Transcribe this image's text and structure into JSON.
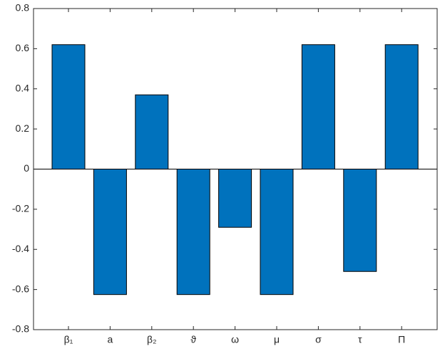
{
  "chart_data": {
    "type": "bar",
    "categories": [
      "β₁",
      "a",
      "β₂",
      "ϑ",
      "ω",
      "μ",
      "σ",
      "τ",
      "Π"
    ],
    "values": [
      0.62,
      -0.625,
      0.37,
      -0.625,
      -0.29,
      -0.625,
      0.62,
      -0.51,
      0.62
    ],
    "color": "#0072bd",
    "ylim": [
      -0.8,
      0.8
    ],
    "yticks": [
      -0.8,
      -0.6,
      -0.4,
      -0.2,
      0,
      0.2,
      0.4,
      0.6,
      0.8
    ],
    "grid": false
  }
}
